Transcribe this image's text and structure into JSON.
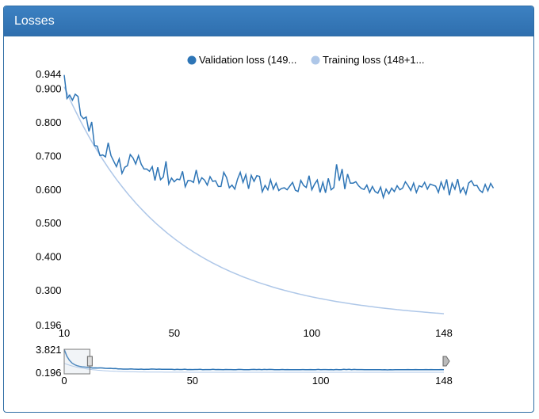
{
  "panel": {
    "title": "Losses"
  },
  "legend": {
    "position": "top"
  },
  "colors": {
    "validation": "#2e75b6",
    "training": "#aec7e8",
    "header": "#337ab7"
  },
  "chart_data": {
    "type": "line",
    "title": "Losses",
    "xlabel": "",
    "ylabel": "",
    "xlim": [
      10,
      148
    ],
    "ylim": [
      0.196,
      0.944
    ],
    "y_ticks": [
      "0.944",
      "0.900",
      "0.800",
      "0.700",
      "0.600",
      "0.500",
      "0.400",
      "0.300",
      "0.196"
    ],
    "x_ticks": [
      "10",
      "50",
      "100",
      "148"
    ],
    "series": [
      {
        "name": "Validation loss (149...",
        "color": "#2e75b6",
        "x_start": 10,
        "values": [
          0.94,
          0.87,
          0.88,
          0.865,
          0.883,
          0.876,
          0.82,
          0.81,
          0.815,
          0.772,
          0.8,
          0.73,
          0.728,
          0.7,
          0.702,
          0.696,
          0.738,
          0.7,
          0.683,
          0.667,
          0.69,
          0.647,
          0.665,
          0.67,
          0.703,
          0.693,
          0.675,
          0.7,
          0.674,
          0.66,
          0.66,
          0.653,
          0.667,
          0.626,
          0.665,
          0.628,
          0.636,
          0.683,
          0.615,
          0.633,
          0.622,
          0.63,
          0.628,
          0.653,
          0.607,
          0.626,
          0.625,
          0.62,
          0.657,
          0.618,
          0.634,
          0.627,
          0.612,
          0.637,
          0.623,
          0.625,
          0.608,
          0.608,
          0.65,
          0.635,
          0.604,
          0.612,
          0.6,
          0.63,
          0.65,
          0.62,
          0.643,
          0.601,
          0.641,
          0.623,
          0.64,
          0.638,
          0.592,
          0.611,
          0.598,
          0.628,
          0.6,
          0.618,
          0.596,
          0.602,
          0.604,
          0.598,
          0.609,
          0.62,
          0.597,
          0.593,
          0.626,
          0.611,
          0.605,
          0.64,
          0.598,
          0.615,
          0.627,
          0.59,
          0.62,
          0.589,
          0.632,
          0.598,
          0.605,
          0.674,
          0.625,
          0.66,
          0.6,
          0.645,
          0.618,
          0.618,
          0.622,
          0.61,
          0.602,
          0.599,
          0.612,
          0.59,
          0.608,
          0.593,
          0.588,
          0.606,
          0.575,
          0.6,
          0.586,
          0.603,
          0.593,
          0.61,
          0.598,
          0.603,
          0.622,
          0.61,
          0.596,
          0.618,
          0.59,
          0.61,
          0.606,
          0.62,
          0.6,
          0.615,
          0.612,
          0.609,
          0.59,
          0.621,
          0.6,
          0.629,
          0.582,
          0.618,
          0.6,
          0.63,
          0.59,
          0.605,
          0.585,
          0.618,
          0.625,
          0.61,
          0.611,
          0.597,
          0.59,
          0.614,
          0.595,
          0.617,
          0.603
        ]
      },
      {
        "name": "Training loss (148+1...",
        "color": "#aec7e8",
        "x_start": 10,
        "decay": {
          "start": 0.905,
          "floor": 0.175,
          "rate": 0.0285
        }
      }
    ]
  },
  "navigator": {
    "ylim": [
      0.196,
      3.821
    ],
    "xlim": [
      0,
      148
    ],
    "y_ticks": [
      "3.821",
      "0.196"
    ],
    "x_ticks": [
      "0",
      "50",
      "100",
      "148"
    ],
    "window": [
      0,
      10
    ]
  }
}
